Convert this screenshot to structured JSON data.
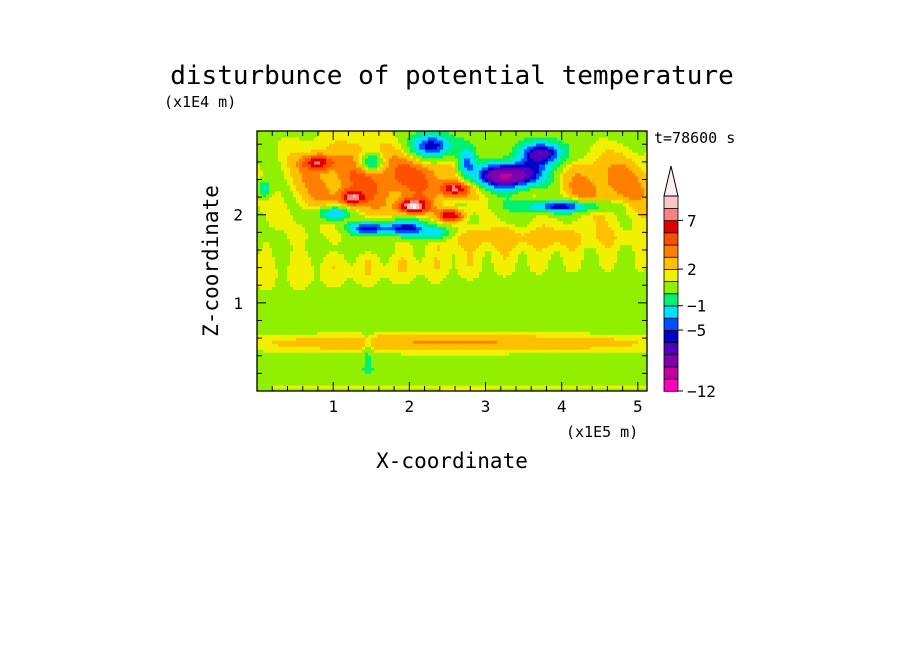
{
  "chart_data": {
    "type": "heatmap",
    "title": "disturbunce of potential temperature",
    "xlabel": "X-coordinate",
    "ylabel": "Z-coordinate",
    "x_unit": "(x1E5 m)",
    "y_unit": "(x1E4 m)",
    "time_label": "t=78600 s",
    "xlim": [
      0,
      5.12
    ],
    "ylim": [
      0,
      2.95
    ],
    "x_ticks": [
      "1",
      "2",
      "3",
      "4",
      "5"
    ],
    "y_ticks": [
      "1",
      "2"
    ],
    "colorbar": {
      "tick_labels": [
        "7",
        "2",
        "−1",
        "−5",
        "−12"
      ],
      "extend": "max",
      "colors": [
        "#ff00c0",
        "#c000a0",
        "#8000b0",
        "#5000c0",
        "#0000c8",
        "#0050ff",
        "#00e0ff",
        "#00f070",
        "#90f000",
        "#f0f000",
        "#ffc000",
        "#ff8000",
        "#ff5000",
        "#e00000",
        "#ff8080",
        "#f8c8c8",
        "#fff0f0"
      ]
    },
    "blobs": [
      {
        "x": 2.5,
        "z": 1.35,
        "rx": 3.2,
        "rz": 0.3,
        "v": 0.9
      },
      {
        "x": 4.0,
        "z": 1.15,
        "rx": 1.8,
        "rz": 0.22,
        "v": -1.3
      },
      {
        "x": 1.6,
        "z": 1.0,
        "rx": 0.9,
        "rz": 0.15,
        "v": -1.0
      },
      {
        "x": 2.6,
        "z": 0.55,
        "rx": 2.8,
        "rz": 0.1,
        "v": 2.1
      },
      {
        "x": 2.6,
        "z": 0.25,
        "rx": 3.2,
        "rz": 0.04,
        "v": -0.9
      },
      {
        "x": 2.7,
        "z": 0.05,
        "rx": 3.0,
        "rz": 0.04,
        "v": 0.8
      },
      {
        "x": 1.45,
        "z": 0.4,
        "rx": 0.06,
        "rz": 0.25,
        "v": -1.5
      },
      {
        "x": 3.2,
        "z": 1.75,
        "rx": 1.9,
        "rz": 0.14,
        "v": 1.3
      },
      {
        "x": 1.4,
        "z": 1.65,
        "rx": 0.7,
        "rz": 0.1,
        "v": -0.8
      },
      {
        "x": 1.2,
        "z": 2.38,
        "rx": 0.9,
        "rz": 0.45,
        "v": 2.2
      },
      {
        "x": 2.2,
        "z": 2.45,
        "rx": 0.8,
        "rz": 0.3,
        "v": 2.4
      },
      {
        "x": 4.6,
        "z": 2.35,
        "rx": 0.8,
        "rz": 0.35,
        "v": 2.5
      },
      {
        "x": 1.0,
        "z": 2.02,
        "rx": 0.2,
        "rz": 0.08,
        "v": -5.5
      },
      {
        "x": 1.45,
        "z": 1.85,
        "rx": 0.28,
        "rz": 0.08,
        "v": -6.5
      },
      {
        "x": 1.95,
        "z": 1.85,
        "rx": 0.25,
        "rz": 0.1,
        "v": -6.5
      },
      {
        "x": 2.35,
        "z": 1.8,
        "rx": 0.2,
        "rz": 0.08,
        "v": -4.5
      },
      {
        "x": 2.3,
        "z": 2.78,
        "rx": 0.3,
        "rz": 0.15,
        "v": -6.5
      },
      {
        "x": 2.75,
        "z": 2.6,
        "rx": 0.12,
        "rz": 0.18,
        "v": -5.0
      },
      {
        "x": 3.3,
        "z": 2.45,
        "rx": 0.45,
        "rz": 0.15,
        "v": -10.0
      },
      {
        "x": 3.75,
        "z": 2.7,
        "rx": 0.3,
        "rz": 0.14,
        "v": -7.0
      },
      {
        "x": 4.0,
        "z": 2.1,
        "rx": 0.55,
        "rz": 0.07,
        "v": -6.0
      },
      {
        "x": 2.05,
        "z": 2.1,
        "rx": 0.18,
        "rz": 0.08,
        "v": 7.5
      },
      {
        "x": 2.55,
        "z": 2.0,
        "rx": 0.15,
        "rz": 0.07,
        "v": 6.0
      },
      {
        "x": 1.25,
        "z": 2.2,
        "rx": 0.15,
        "rz": 0.08,
        "v": 5.5
      },
      {
        "x": 2.6,
        "z": 2.3,
        "rx": 0.18,
        "rz": 0.08,
        "v": 5.5
      },
      {
        "x": 0.8,
        "z": 2.6,
        "rx": 0.18,
        "rz": 0.08,
        "v": 5.0
      },
      {
        "x": 1.5,
        "z": 2.6,
        "rx": 0.15,
        "rz": 0.1,
        "v": -4.5
      },
      {
        "x": 0.1,
        "z": 2.3,
        "rx": 0.08,
        "rz": 0.1,
        "v": -4.0
      }
    ]
  }
}
